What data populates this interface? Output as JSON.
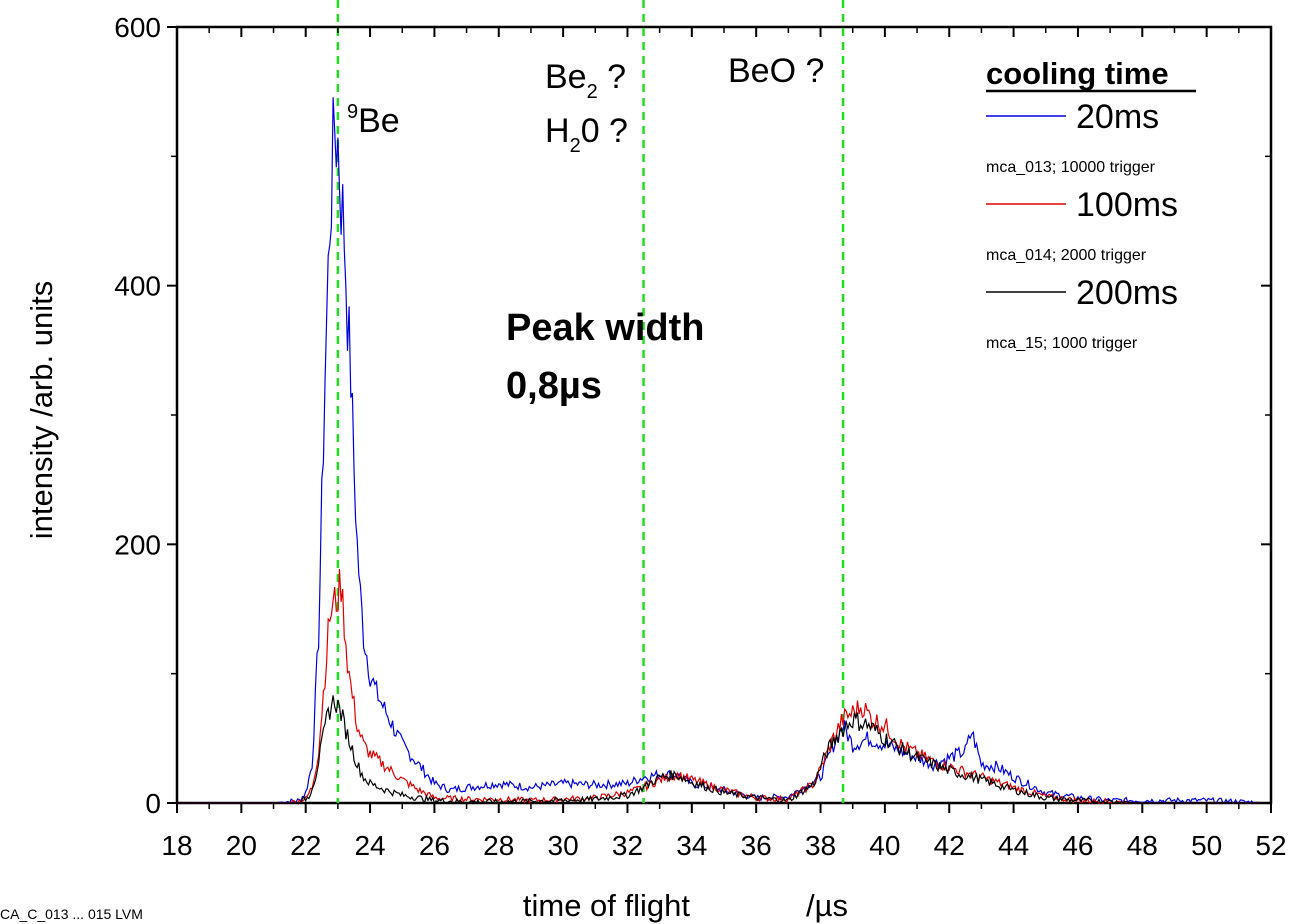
{
  "chart_data": {
    "type": "line",
    "xlabel_main": "time of flight",
    "xlabel_unit": "/µs",
    "ylabel": "intensity    /arb. units",
    "xlim": [
      18,
      52
    ],
    "ylim": [
      0,
      600
    ],
    "x_ticks": [
      18,
      20,
      22,
      24,
      26,
      28,
      30,
      32,
      34,
      36,
      38,
      40,
      42,
      44,
      46,
      48,
      50,
      52
    ],
    "y_ticks": [
      0,
      200,
      400,
      600
    ],
    "grid": false,
    "legend_position": "top-right",
    "legend_title": "cooling time",
    "reference_lines": [
      {
        "x": 23.0,
        "color": "#22dd22",
        "style": "dashed"
      },
      {
        "x": 32.5,
        "color": "#22dd22",
        "style": "dashed"
      },
      {
        "x": 38.7,
        "color": "#22dd22",
        "style": "dashed"
      }
    ],
    "annotations": {
      "be9_sup": "9",
      "be9_main": "Be",
      "be2_main": "Be",
      "be2_sub": "2",
      "be2_q": " ?",
      "h2o_h": "H",
      "h2o_sub": "2",
      "h2o_rest": "0 ?",
      "beo": "BeO ?",
      "peak_width_label": "Peak width",
      "peak_width_value": "0,8µs"
    },
    "series": [
      {
        "name": "20ms",
        "note": "mca_013;  10000 trigger",
        "color": "#0000dd",
        "points": [
          [
            18,
            0
          ],
          [
            21,
            0
          ],
          [
            21.8,
            2
          ],
          [
            22,
            8
          ],
          [
            22.2,
            30
          ],
          [
            22.4,
            130
          ],
          [
            22.6,
            330
          ],
          [
            22.75,
            450
          ],
          [
            22.9,
            525
          ],
          [
            23.0,
            510
          ],
          [
            23.1,
            470
          ],
          [
            23.2,
            440
          ],
          [
            23.3,
            380
          ],
          [
            23.4,
            330
          ],
          [
            23.5,
            260
          ],
          [
            23.6,
            200
          ],
          [
            23.7,
            160
          ],
          [
            23.8,
            130
          ],
          [
            24,
            100
          ],
          [
            24.2,
            85
          ],
          [
            24.5,
            70
          ],
          [
            25,
            45
          ],
          [
            25.5,
            30
          ],
          [
            26,
            15
          ],
          [
            26.5,
            10
          ],
          [
            27,
            12
          ],
          [
            28,
            15
          ],
          [
            29,
            12
          ],
          [
            30,
            15
          ],
          [
            31,
            14
          ],
          [
            32,
            15
          ],
          [
            32.5,
            20
          ],
          [
            33,
            22
          ],
          [
            33.5,
            22
          ],
          [
            34,
            15
          ],
          [
            35,
            10
          ],
          [
            36,
            4
          ],
          [
            37,
            5
          ],
          [
            38,
            20
          ],
          [
            38.4,
            45
          ],
          [
            38.7,
            60
          ],
          [
            39,
            45
          ],
          [
            39.5,
            50
          ],
          [
            40,
            45
          ],
          [
            40.5,
            40
          ],
          [
            41,
            35
          ],
          [
            41.5,
            30
          ],
          [
            42,
            35
          ],
          [
            42.5,
            40
          ],
          [
            42.7,
            55
          ],
          [
            43,
            30
          ],
          [
            43.5,
            28
          ],
          [
            44,
            20
          ],
          [
            45,
            8
          ],
          [
            46,
            4
          ],
          [
            47,
            2
          ],
          [
            48,
            2
          ],
          [
            50,
            2
          ],
          [
            52,
            0
          ]
        ]
      },
      {
        "name": "100ms",
        "note": "mca_014; 2000 trigger",
        "color": "#dd0000",
        "points": [
          [
            18,
            0
          ],
          [
            21.5,
            0
          ],
          [
            22,
            3
          ],
          [
            22.2,
            12
          ],
          [
            22.4,
            40
          ],
          [
            22.6,
            100
          ],
          [
            22.75,
            145
          ],
          [
            22.9,
            155
          ],
          [
            23.0,
            160
          ],
          [
            23.1,
            170
          ],
          [
            23.2,
            140
          ],
          [
            23.3,
            110
          ],
          [
            23.4,
            90
          ],
          [
            23.6,
            60
          ],
          [
            23.8,
            45
          ],
          [
            24,
            38
          ],
          [
            24.5,
            28
          ],
          [
            25,
            18
          ],
          [
            25.5,
            10
          ],
          [
            26,
            4
          ],
          [
            27,
            3
          ],
          [
            28,
            3
          ],
          [
            29,
            2
          ],
          [
            30,
            3
          ],
          [
            31,
            4
          ],
          [
            32,
            8
          ],
          [
            32.5,
            12
          ],
          [
            33,
            18
          ],
          [
            33.5,
            22
          ],
          [
            34,
            18
          ],
          [
            35,
            10
          ],
          [
            36,
            4
          ],
          [
            37,
            3
          ],
          [
            37.8,
            15
          ],
          [
            38.4,
            50
          ],
          [
            38.7,
            65
          ],
          [
            39,
            70
          ],
          [
            39.3,
            75
          ],
          [
            39.6,
            65
          ],
          [
            40,
            60
          ],
          [
            40.5,
            45
          ],
          [
            41,
            38
          ],
          [
            41.5,
            32
          ],
          [
            42,
            28
          ],
          [
            43,
            20
          ],
          [
            44,
            12
          ],
          [
            45,
            5
          ],
          [
            46,
            2
          ],
          [
            48,
            0
          ],
          [
            52,
            0
          ]
        ]
      },
      {
        "name": "200ms",
        "note": "mca_15; 1000 trigger",
        "color": "#000000",
        "points": [
          [
            18,
            0
          ],
          [
            21.8,
            0
          ],
          [
            22.1,
            5
          ],
          [
            22.3,
            20
          ],
          [
            22.5,
            45
          ],
          [
            22.7,
            70
          ],
          [
            22.9,
            80
          ],
          [
            23.0,
            75
          ],
          [
            23.1,
            70
          ],
          [
            23.2,
            60
          ],
          [
            23.4,
            45
          ],
          [
            23.6,
            30
          ],
          [
            23.8,
            20
          ],
          [
            24,
            15
          ],
          [
            24.5,
            10
          ],
          [
            25,
            6
          ],
          [
            25.5,
            4
          ],
          [
            26,
            2
          ],
          [
            27,
            1
          ],
          [
            28,
            1
          ],
          [
            30,
            2
          ],
          [
            31,
            3
          ],
          [
            32,
            6
          ],
          [
            32.5,
            12
          ],
          [
            33,
            20
          ],
          [
            33.5,
            22
          ],
          [
            34,
            16
          ],
          [
            35,
            8
          ],
          [
            36,
            4
          ],
          [
            37,
            2
          ],
          [
            37.8,
            15
          ],
          [
            38.2,
            40
          ],
          [
            38.6,
            55
          ],
          [
            39,
            65
          ],
          [
            39.5,
            60
          ],
          [
            40,
            50
          ],
          [
            40.5,
            42
          ],
          [
            41,
            35
          ],
          [
            42,
            25
          ],
          [
            43,
            18
          ],
          [
            44,
            10
          ],
          [
            45,
            4
          ],
          [
            46,
            2
          ],
          [
            48,
            0
          ],
          [
            52,
            0
          ]
        ]
      }
    ]
  },
  "footer_text": "CA_C_013 ... 015 LVM"
}
